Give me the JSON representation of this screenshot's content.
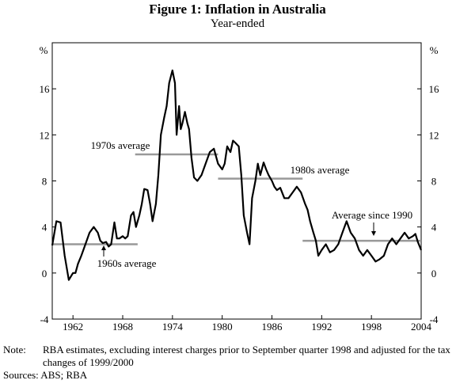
{
  "chart_data": {
    "type": "line",
    "title": "Figure 1: Inflation in Australia",
    "subtitle": "Year-ended",
    "unit_label_left": "%",
    "unit_label_right": "%",
    "xlim": [
      1959.5,
      2004
    ],
    "ylim": [
      -4,
      20
    ],
    "y_ticks": [
      -4,
      0,
      4,
      8,
      12,
      16
    ],
    "x_tick_labels": [
      "1962",
      "1968",
      "1974",
      "1980",
      "1986",
      "1992",
      "1998",
      "2004"
    ],
    "x_tick_values": [
      1962,
      1968,
      1974,
      1980,
      1986,
      1992,
      1998,
      2004
    ],
    "series": [
      {
        "name": "Year-ended inflation",
        "x": [
          1959.5,
          1960.0,
          1960.5,
          1961.0,
          1961.5,
          1962.0,
          1962.3,
          1962.6,
          1963.0,
          1963.5,
          1964.0,
          1964.5,
          1965.0,
          1965.3,
          1965.6,
          1966.0,
          1966.3,
          1966.6,
          1967.0,
          1967.3,
          1967.6,
          1968.0,
          1968.3,
          1968.6,
          1969.0,
          1969.3,
          1969.6,
          1970.0,
          1970.3,
          1970.6,
          1971.0,
          1971.3,
          1971.6,
          1972.0,
          1972.3,
          1972.6,
          1973.0,
          1973.3,
          1973.6,
          1974.0,
          1974.3,
          1974.5,
          1974.8,
          1975.0,
          1975.2,
          1975.5,
          1975.8,
          1976.0,
          1976.3,
          1976.6,
          1977.0,
          1977.5,
          1978.0,
          1978.5,
          1979.0,
          1979.5,
          1980.0,
          1980.3,
          1980.6,
          1981.0,
          1981.3,
          1981.6,
          1982.0,
          1982.3,
          1982.6,
          1983.0,
          1983.3,
          1983.6,
          1984.0,
          1984.3,
          1984.6,
          1985.0,
          1985.3,
          1985.6,
          1986.0,
          1986.3,
          1986.6,
          1987.0,
          1987.5,
          1988.0,
          1988.5,
          1989.0,
          1989.5,
          1990.0,
          1990.3,
          1990.6,
          1991.0,
          1991.3,
          1991.6,
          1992.0,
          1992.5,
          1993.0,
          1993.5,
          1994.0,
          1994.5,
          1995.0,
          1995.5,
          1996.0,
          1996.5,
          1997.0,
          1997.5,
          1998.0,
          1998.5,
          1999.0,
          1999.5,
          2000.0,
          2000.5,
          2001.0,
          2001.5,
          2002.0,
          2002.5,
          2003.0,
          2003.3,
          2003.6,
          2004.0
        ],
        "y": [
          2.4,
          4.5,
          4.4,
          1.5,
          -0.6,
          0.0,
          0.0,
          0.8,
          1.5,
          2.5,
          3.5,
          4.0,
          3.5,
          2.8,
          2.6,
          2.7,
          2.3,
          2.5,
          4.4,
          3.0,
          3.0,
          3.2,
          3.0,
          3.2,
          5.0,
          5.3,
          4.0,
          5.0,
          6.0,
          7.3,
          7.2,
          6.0,
          4.5,
          6.0,
          8.5,
          12.0,
          13.5,
          14.5,
          16.5,
          17.6,
          16.5,
          12.0,
          14.5,
          12.5,
          13.0,
          14.0,
          13.0,
          12.5,
          10.0,
          8.3,
          8.0,
          8.5,
          9.5,
          10.5,
          10.8,
          9.5,
          9.0,
          9.5,
          11.0,
          10.5,
          11.5,
          11.3,
          11.0,
          8.5,
          5.0,
          3.5,
          2.5,
          6.5,
          8.0,
          9.5,
          8.5,
          9.6,
          9.0,
          8.5,
          8.0,
          7.5,
          7.2,
          7.4,
          6.5,
          6.5,
          7.0,
          7.5,
          7.0,
          6.0,
          5.5,
          4.5,
          3.5,
          2.8,
          1.5,
          2.0,
          2.5,
          1.8,
          2.0,
          2.5,
          3.5,
          4.5,
          3.5,
          3.0,
          2.0,
          1.5,
          2.0,
          1.5,
          1.0,
          1.2,
          1.5,
          2.5,
          3.0,
          2.5,
          3.0,
          3.5,
          3.0,
          3.2,
          3.4,
          2.7,
          2.0
        ]
      }
    ],
    "averages": [
      {
        "label": "1960s average",
        "x_start": 1959.5,
        "x_end": 1969.8,
        "value": 2.5
      },
      {
        "label": "1970s average",
        "x_start": 1969.5,
        "x_end": 1979.5,
        "value": 10.3
      },
      {
        "label": "1980s average",
        "x_start": 1979.5,
        "x_end": 1989.7,
        "value": 8.2
      },
      {
        "label": "Average since 1990",
        "x_start": 1989.7,
        "x_end": 2004.0,
        "value": 2.8
      }
    ]
  },
  "note": {
    "label": "Note:",
    "text": "RBA estimates, excluding interest charges prior to September quarter 1998 and adjusted for the tax changes of 1999/2000"
  },
  "sources": "Sources: ABS; RBA"
}
